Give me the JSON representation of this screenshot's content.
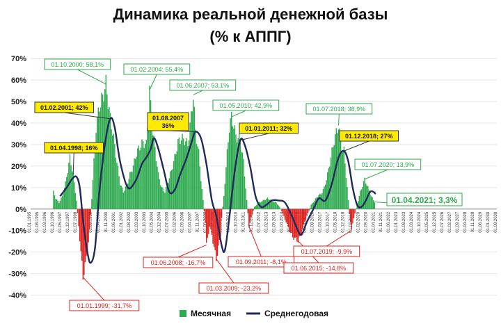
{
  "title_line1": "Динамика реальной денежной базы",
  "title_line2": "(% к АППГ)",
  "chart_data": {
    "type": "bar",
    "ylim": [
      -45,
      72
    ],
    "y_ticks": [
      "70%",
      "60%",
      "50%",
      "40%",
      "30%",
      "20%",
      "10%",
      "0%",
      "-10%",
      "-20%",
      "-30%",
      "-40%"
    ],
    "y_tick_values": [
      70,
      60,
      50,
      40,
      30,
      20,
      10,
      0,
      -10,
      -20,
      -30,
      -40
    ],
    "x_start": "1995-01",
    "x_end": "2030-08",
    "x_ticks": [
      "01.01.1995",
      "01.08.1995",
      "01.03.1996",
      "01.10.1996",
      "01.05.1997",
      "01.12.1997",
      "01.07.1998",
      "01.02.1999",
      "01.09.1999",
      "01.04.2000",
      "01.11.2000",
      "01.06.2001",
      "01.01.2002",
      "01.08.2002",
      "01.03.2003",
      "01.10.2003",
      "01.05.2004",
      "01.12.2004",
      "01.07.2005",
      "01.02.2006",
      "01.09.2006",
      "01.04.2007",
      "01.11.2007",
      "01.06.2008",
      "01.01.2009",
      "01.08.2009",
      "01.03.2010",
      "01.10.2010",
      "01.05.2011",
      "01.12.2011",
      "01.07.2012",
      "01.02.2013",
      "01.09.2013",
      "01.04.2014",
      "01.11.2014",
      "01.06.2015",
      "01.01.2016",
      "01.08.2016",
      "01.03.2017",
      "01.10.2017",
      "01.05.2018",
      "01.12.2018",
      "01.07.2019",
      "01.02.2020",
      "01.09.2020",
      "01.04.2021",
      "01.11.2021",
      "01.06.2022",
      "01.01.2023",
      "01.08.2023",
      "01.03.2024",
      "01.10.2024",
      "01.05.2025",
      "01.12.2025",
      "01.07.2026",
      "01.02.2027",
      "01.09.2027",
      "01.04.2028",
      "01.11.2028",
      "01.06.2029",
      "01.01.2030",
      "01.08.2030"
    ],
    "monthly_keypoints": [
      [
        "1996-09",
        0
      ],
      [
        "1996-10",
        8
      ],
      [
        "1996-12",
        5
      ],
      [
        "1997-03",
        3
      ],
      [
        "1997-06",
        6
      ],
      [
        "1997-09",
        12
      ],
      [
        "1997-11",
        18
      ],
      [
        "1998-01",
        24
      ],
      [
        "1998-04",
        16
      ],
      [
        "1998-07",
        4
      ],
      [
        "1998-09",
        -8
      ],
      [
        "1998-11",
        -20
      ],
      [
        "1999-01",
        -31.7
      ],
      [
        "1999-03",
        -26
      ],
      [
        "1999-05",
        -20
      ],
      [
        "1999-07",
        -10
      ],
      [
        "1999-09",
        5
      ],
      [
        "1999-11",
        22
      ],
      [
        "2000-01",
        38
      ],
      [
        "2000-04",
        48
      ],
      [
        "2000-07",
        52
      ],
      [
        "2000-10",
        58.1
      ],
      [
        "2000-12",
        50
      ],
      [
        "2001-02",
        42
      ],
      [
        "2001-05",
        33
      ],
      [
        "2001-08",
        22
      ],
      [
        "2001-11",
        12
      ],
      [
        "2002-02",
        8
      ],
      [
        "2002-05",
        11
      ],
      [
        "2002-08",
        16
      ],
      [
        "2002-11",
        20
      ],
      [
        "2003-02",
        26
      ],
      [
        "2003-05",
        29
      ],
      [
        "2003-08",
        31
      ],
      [
        "2003-11",
        30
      ],
      [
        "2004-02",
        55.4
      ],
      [
        "2004-04",
        40
      ],
      [
        "2004-07",
        28
      ],
      [
        "2004-10",
        16
      ],
      [
        "2005-01",
        10
      ],
      [
        "2005-04",
        8
      ],
      [
        "2005-07",
        13
      ],
      [
        "2005-10",
        18
      ],
      [
        "2006-01",
        24
      ],
      [
        "2006-04",
        31
      ],
      [
        "2006-07",
        33
      ],
      [
        "2006-10",
        32
      ],
      [
        "2007-01",
        30
      ],
      [
        "2007-04",
        43
      ],
      [
        "2007-06",
        53.1
      ],
      [
        "2007-08",
        36
      ],
      [
        "2007-11",
        26
      ],
      [
        "2008-01",
        14
      ],
      [
        "2008-03",
        4
      ],
      [
        "2008-05",
        -6
      ],
      [
        "2008-06",
        -16.7
      ],
      [
        "2008-09",
        -8
      ],
      [
        "2008-11",
        -12
      ],
      [
        "2009-01",
        -18
      ],
      [
        "2009-03",
        -23.2
      ],
      [
        "2009-05",
        -18
      ],
      [
        "2009-07",
        -12
      ],
      [
        "2009-08",
        -4
      ],
      [
        "2009-10",
        6
      ],
      [
        "2010-01",
        26
      ],
      [
        "2010-03",
        38
      ],
      [
        "2010-05",
        42.9
      ],
      [
        "2010-07",
        39
      ],
      [
        "2010-09",
        34
      ],
      [
        "2011-01",
        32
      ],
      [
        "2011-04",
        22
      ],
      [
        "2011-06",
        10
      ],
      [
        "2011-08",
        -2
      ],
      [
        "2011-09",
        -8.1
      ],
      [
        "2011-11",
        -4
      ],
      [
        "2012-02",
        1
      ],
      [
        "2012-06",
        3
      ],
      [
        "2012-10",
        4
      ],
      [
        "2013-02",
        5
      ],
      [
        "2013-06",
        4
      ],
      [
        "2013-10",
        3
      ],
      [
        "2014-01",
        1
      ],
      [
        "2014-04",
        -2
      ],
      [
        "2014-07",
        -6
      ],
      [
        "2014-10",
        -10
      ],
      [
        "2015-01",
        -13
      ],
      [
        "2015-06",
        -14.8
      ],
      [
        "2015-09",
        -11
      ],
      [
        "2015-12",
        -6
      ],
      [
        "2016-03",
        -2
      ],
      [
        "2016-06",
        2
      ],
      [
        "2016-09",
        4
      ],
      [
        "2016-12",
        6
      ],
      [
        "2017-03",
        7
      ],
      [
        "2017-06",
        10
      ],
      [
        "2017-09",
        16
      ],
      [
        "2017-12",
        24
      ],
      [
        "2018-03",
        32
      ],
      [
        "2018-07",
        38.9
      ],
      [
        "2018-10",
        28
      ],
      [
        "2018-12",
        27
      ],
      [
        "2019-03",
        10
      ],
      [
        "2019-05",
        -2
      ],
      [
        "2019-07",
        -9.9
      ],
      [
        "2019-09",
        -4
      ],
      [
        "2019-12",
        2
      ],
      [
        "2020-03",
        8
      ],
      [
        "2020-07",
        13.9
      ],
      [
        "2020-10",
        10
      ],
      [
        "2021-01",
        6
      ],
      [
        "2021-04",
        3.3
      ]
    ],
    "annual_keypoints": [
      [
        "1997-04",
        6
      ],
      [
        "1997-10",
        10
      ],
      [
        "1998-03",
        14
      ],
      [
        "1998-07",
        15
      ],
      [
        "1998-10",
        10
      ],
      [
        "1999-01",
        -5
      ],
      [
        "1999-05",
        -20
      ],
      [
        "1999-08",
        -25
      ],
      [
        "1999-12",
        -18
      ],
      [
        "2000-04",
        8
      ],
      [
        "2000-09",
        30
      ],
      [
        "2001-02",
        42
      ],
      [
        "2001-06",
        38
      ],
      [
        "2001-11",
        22
      ],
      [
        "2002-06",
        10
      ],
      [
        "2003-01",
        13
      ],
      [
        "2003-07",
        21
      ],
      [
        "2003-11",
        24
      ],
      [
        "2004-03",
        28
      ],
      [
        "2004-06",
        33
      ],
      [
        "2004-10",
        28
      ],
      [
        "2005-03",
        18
      ],
      [
        "2005-08",
        8
      ],
      [
        "2006-01",
        9
      ],
      [
        "2006-06",
        16
      ],
      [
        "2006-12",
        24
      ],
      [
        "2007-05",
        32
      ],
      [
        "2007-08",
        36
      ],
      [
        "2008-01",
        33
      ],
      [
        "2008-06",
        21
      ],
      [
        "2008-11",
        4
      ],
      [
        "2009-03",
        -3
      ],
      [
        "2009-08",
        -17
      ],
      [
        "2009-11",
        -19
      ],
      [
        "2010-03",
        -4
      ],
      [
        "2010-08",
        18
      ],
      [
        "2011-01",
        32
      ],
      [
        "2011-05",
        30
      ],
      [
        "2011-10",
        20
      ],
      [
        "2012-03",
        6
      ],
      [
        "2012-08",
        1
      ],
      [
        "2013-01",
        2
      ],
      [
        "2013-06",
        4
      ],
      [
        "2013-12",
        4
      ],
      [
        "2014-06",
        3
      ],
      [
        "2014-12",
        -3
      ],
      [
        "2015-05",
        -9
      ],
      [
        "2015-09",
        -12
      ],
      [
        "2016-02",
        -6
      ],
      [
        "2016-08",
        0
      ],
      [
        "2017-01",
        5
      ],
      [
        "2017-07",
        4
      ],
      [
        "2018-01",
        12
      ],
      [
        "2018-07",
        24
      ],
      [
        "2018-12",
        27
      ],
      [
        "2019-04",
        22
      ],
      [
        "2019-08",
        10
      ],
      [
        "2019-12",
        2
      ],
      [
        "2020-04",
        1
      ],
      [
        "2020-08",
        4
      ],
      [
        "2020-12",
        8
      ],
      [
        "2021-03",
        8
      ],
      [
        "2021-05",
        7
      ]
    ],
    "annotations": [
      {
        "label": "01.10.2000; 58,1%",
        "date": "2000-10",
        "value": 58.1,
        "style": "green"
      },
      {
        "label": "01.02.2004; 55,4%",
        "date": "2004-02",
        "value": 55.4,
        "style": "green"
      },
      {
        "label": "01.06.2007; 53,1%",
        "date": "2007-06",
        "value": 53.1,
        "style": "green"
      },
      {
        "label": "01.05.2010; 42,9%",
        "date": "2010-05",
        "value": 42.9,
        "style": "green"
      },
      {
        "label": "01.07.2018; 38,9%",
        "date": "2018-07",
        "value": 38.9,
        "style": "green"
      },
      {
        "label": "01.07.2020; 13,9%",
        "date": "2020-07",
        "value": 13.9,
        "style": "green"
      },
      {
        "label": "01.04.2021; 3,3%",
        "date": "2021-04",
        "value": 3.3,
        "style": "green-big"
      },
      {
        "label": "01.02.2001; 42%",
        "date": "2001-02",
        "value": 42,
        "style": "yellow"
      },
      {
        "label": "01.04.1998; 16%",
        "date": "1998-04",
        "value": 16,
        "style": "yellow"
      },
      {
        "label": "01.08.2007|36%",
        "date": "2007-08",
        "value": 36,
        "style": "yellow"
      },
      {
        "label": "01.01.2011; 32%",
        "date": "2011-01",
        "value": 32,
        "style": "yellow"
      },
      {
        "label": "01.12.2018; 27%",
        "date": "2018-12",
        "value": 27,
        "style": "yellow"
      },
      {
        "label": "01.01.1999; -31,7%",
        "date": "1999-01",
        "value": -31.7,
        "style": "red"
      },
      {
        "label": "01.06.2008; -16,7%",
        "date": "2008-06",
        "value": -16.7,
        "style": "red"
      },
      {
        "label": "01.03.2009; -23,2%",
        "date": "2009-03",
        "value": -23.2,
        "style": "red"
      },
      {
        "label": "01.09.2011; -8,1%",
        "date": "2011-09",
        "value": -8.1,
        "style": "red"
      },
      {
        "label": "01.06.2015; -14,8%",
        "date": "2015-06",
        "value": -14.8,
        "style": "red"
      },
      {
        "label": "01.07.2019; -9,9%",
        "date": "2019-07",
        "value": -9.9,
        "style": "red"
      }
    ],
    "legend": [
      {
        "name": "Месячная",
        "color": "#2eaa4f"
      },
      {
        "name": "Среднегодовая",
        "color": "#1f2a5a"
      }
    ],
    "positive_color": "#2eaa4f",
    "negative_color": "#e0201c",
    "line_color": "#1f2a5a"
  }
}
